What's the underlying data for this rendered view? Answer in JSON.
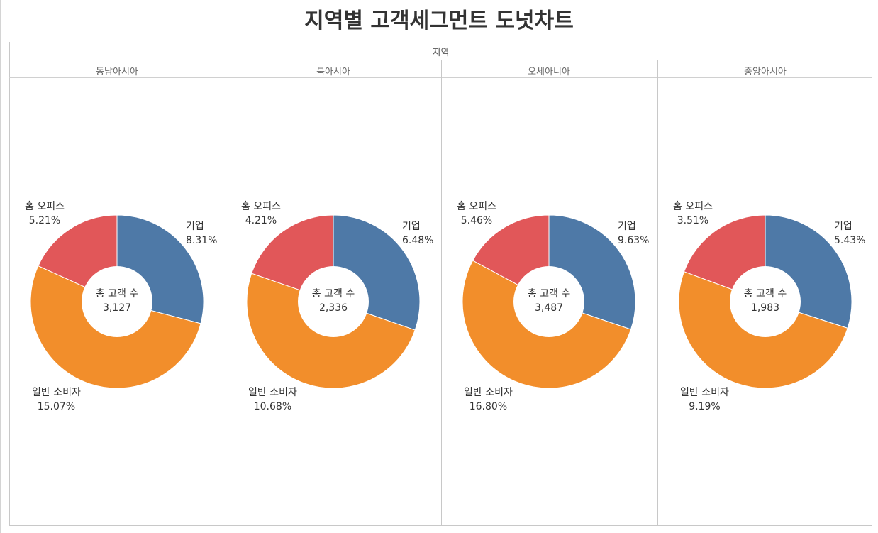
{
  "title": "지역별 고객세그먼트 도넛차트",
  "header": "지역",
  "colors": {
    "기업": "#4e79a7",
    "일반 소비자": "#f28e2b",
    "홈 오피스": "#e15759"
  },
  "chart_data": {
    "type": "pie",
    "style": "donut",
    "column_field": "지역",
    "center_label": "총 고객 수",
    "segments": [
      "기업",
      "일반 소비자",
      "홈 오피스"
    ],
    "panels": [
      {
        "region": "동남아시아",
        "total": "3,127",
        "values": [
          8.31,
          15.07,
          5.21
        ],
        "labels": [
          "8.31%",
          "15.07%",
          "5.21%"
        ]
      },
      {
        "region": "북아시아",
        "total": "2,336",
        "values": [
          6.48,
          10.68,
          4.21
        ],
        "labels": [
          "6.48%",
          "10.68%",
          "4.21%"
        ]
      },
      {
        "region": "오세아니아",
        "total": "3,487",
        "values": [
          9.63,
          16.8,
          5.46
        ],
        "labels": [
          "9.63%",
          "16.80%",
          "5.46%"
        ]
      },
      {
        "region": "중앙아시아",
        "total": "1,983",
        "values": [
          5.43,
          9.19,
          3.51
        ],
        "labels": [
          "5.43%",
          "9.19%",
          "3.51%"
        ]
      }
    ]
  }
}
